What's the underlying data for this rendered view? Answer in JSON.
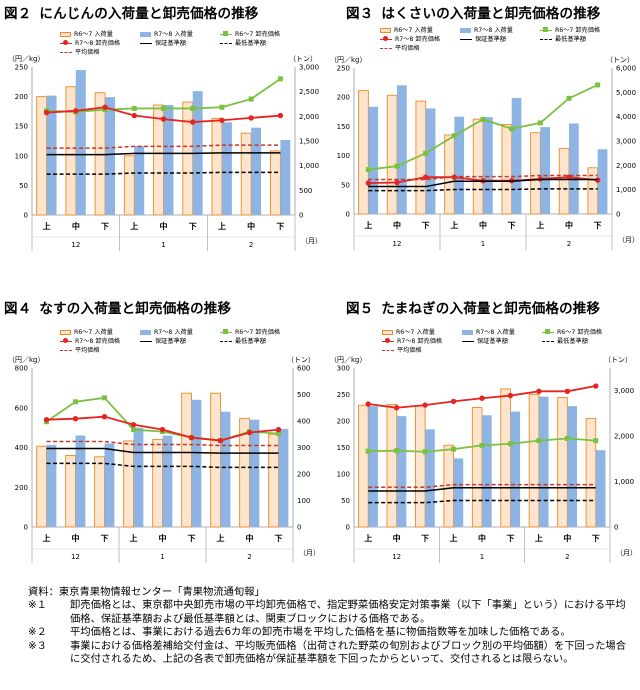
{
  "charts": [
    {
      "id": "carrot",
      "number": "図２",
      "title": "にんじんの入荷量と卸売価格の推移",
      "y_left_unit": "（円／kg）",
      "y_right_unit": "（トン）",
      "month_unit": "（月）",
      "y_left": [
        0,
        250,
        50
      ],
      "y_right": [
        0,
        3000,
        500
      ],
      "chart_data": {
        "type": "bar+line",
        "categories": [
          "上",
          "中",
          "下",
          "上",
          "中",
          "下",
          "上",
          "中",
          "下"
        ],
        "months": [
          "12",
          "1",
          "2"
        ],
        "series": [
          {
            "name": "R6～7 入荷量",
            "kind": "bar",
            "axis": "right",
            "color": "#fce4cd",
            "stroke": "#f08a24",
            "values": [
              2400,
              2600,
              2480,
              1200,
              2230,
              2290,
              1960,
              1660,
              1300
            ]
          },
          {
            "name": "R7～8 入荷量",
            "kind": "bar",
            "axis": "right",
            "color": "#8db4e2",
            "values": [
              2420,
              2940,
              2390,
              1400,
              2230,
              2510,
              1880,
              1770,
              1520
            ]
          },
          {
            "name": "R6～7 卸売価格",
            "kind": "line",
            "axis": "left",
            "color": "#7ac142",
            "marker": "square",
            "values": [
              176,
              174,
              178,
              180,
              180,
              180,
              182,
              196,
              230
            ]
          },
          {
            "name": "R7～8 卸売価格",
            "kind": "line",
            "axis": "left",
            "color": "#e52421",
            "marker": "circle",
            "values": [
              173,
              176,
              182,
              168,
              162,
              157,
              160,
              164,
              168
            ]
          },
          {
            "name": "保証基準額",
            "kind": "line",
            "axis": "left",
            "color": "#000000",
            "style": "solid",
            "values": [
              102,
              102,
              102,
              104,
              104,
              104,
              105,
              105,
              105
            ]
          },
          {
            "name": "最低基準額",
            "kind": "line",
            "axis": "left",
            "color": "#000000",
            "style": "dashed",
            "values": [
              69,
              69,
              69,
              71,
              71,
              71,
              72,
              72,
              72
            ]
          },
          {
            "name": "平均価格",
            "kind": "line",
            "axis": "left",
            "color": "#c0392b",
            "style": "dashed",
            "values": [
              113,
              113,
              113,
              116,
              116,
              116,
              118,
              118,
              118
            ]
          }
        ]
      }
    },
    {
      "id": "chinese-cabbage",
      "number": "図３",
      "title": "はくさいの入荷量と卸売価格の推移",
      "y_left_unit": "（円／kg）",
      "y_right_unit": "（トン）",
      "month_unit": "（月）",
      "y_left": [
        0,
        250,
        50
      ],
      "y_right": [
        0,
        6000,
        1000
      ],
      "chart_data": {
        "type": "bar+line",
        "categories": [
          "上",
          "中",
          "下",
          "上",
          "中",
          "下",
          "上",
          "中",
          "下"
        ],
        "months": [
          "12",
          "1",
          "2"
        ],
        "series": [
          {
            "name": "R6～7 入荷量",
            "kind": "bar",
            "axis": "right",
            "color": "#fce4cd",
            "stroke": "#f08a24",
            "values": [
              5080,
              4880,
              4640,
              3250,
              3900,
              3680,
              3340,
              2700,
              1900
            ]
          },
          {
            "name": "R7～8 入荷量",
            "kind": "bar",
            "axis": "right",
            "color": "#8db4e2",
            "values": [
              4410,
              5290,
              4340,
              4000,
              3980,
              4770,
              3570,
              3720,
              2660
            ]
          },
          {
            "name": "R6～7 卸売価格",
            "kind": "line",
            "axis": "left",
            "color": "#7ac142",
            "marker": "square",
            "values": [
              76,
              82,
              104,
              134,
              162,
              146,
              156,
              198,
              221
            ]
          },
          {
            "name": "R7～8 卸売価格",
            "kind": "line",
            "axis": "left",
            "color": "#e52421",
            "marker": "circle",
            "values": [
              53,
              54,
              63,
              63,
              57,
              57,
              60,
              63,
              58
            ]
          },
          {
            "name": "保証基準額",
            "kind": "line",
            "axis": "left",
            "color": "#000000",
            "style": "solid",
            "values": [
              47,
              47,
              47,
              56,
              56,
              56,
              59,
              59,
              59
            ]
          },
          {
            "name": "最低基準額",
            "kind": "line",
            "axis": "left",
            "color": "#000000",
            "style": "dashed",
            "values": [
              40,
              40,
              40,
              42,
              42,
              42,
              43,
              43,
              43
            ]
          },
          {
            "name": "平均価格",
            "kind": "line",
            "axis": "left",
            "color": "#c0392b",
            "style": "dashed",
            "values": [
              59,
              59,
              59,
              64,
              64,
              64,
              66,
              66,
              66
            ]
          }
        ]
      }
    },
    {
      "id": "eggplant",
      "number": "図４",
      "title": "なすの入荷量と卸売価格の推移",
      "y_left_unit": "（円／kg）",
      "y_right_unit": "（トン）",
      "month_unit": "（月）",
      "y_left": [
        0,
        800,
        200
      ],
      "y_right": [
        0,
        600,
        100
      ],
      "chart_data": {
        "type": "bar+line",
        "categories": [
          "上",
          "中",
          "下",
          "上",
          "中",
          "下",
          "上",
          "中",
          "下"
        ],
        "months": [
          "12",
          "1",
          "2"
        ],
        "series": [
          {
            "name": "R6～7 入荷量",
            "kind": "bar",
            "axis": "right",
            "color": "#fce4cd",
            "stroke": "#f08a24",
            "values": [
              305,
              270,
              265,
              325,
              330,
              505,
              505,
              410,
              350
            ]
          },
          {
            "name": "R7～8 入荷量",
            "kind": "bar",
            "axis": "right",
            "color": "#8db4e2",
            "values": [
              310,
              345,
              315,
              375,
              345,
              480,
              435,
              405,
              370
            ]
          },
          {
            "name": "R6～7 卸売価格",
            "kind": "line",
            "axis": "left",
            "color": "#7ac142",
            "marker": "square",
            "values": [
              530,
              630,
              650,
              490,
              480,
              450,
              435,
              480,
              470
            ]
          },
          {
            "name": "R7～8 卸売価格",
            "kind": "line",
            "axis": "left",
            "color": "#e52421",
            "marker": "circle",
            "values": [
              540,
              545,
              555,
              515,
              490,
              450,
              435,
              475,
              490
            ]
          },
          {
            "name": "保証基準額",
            "kind": "line",
            "axis": "left",
            "color": "#000000",
            "style": "solid",
            "values": [
              395,
              395,
              395,
              375,
              375,
              375,
              372,
              372,
              372
            ]
          },
          {
            "name": "最低基準額",
            "kind": "line",
            "axis": "left",
            "color": "#000000",
            "style": "dashed",
            "values": [
              320,
              320,
              320,
              305,
              305,
              305,
              300,
              300,
              300
            ]
          },
          {
            "name": "平均価格",
            "kind": "line",
            "axis": "left",
            "color": "#c0392b",
            "style": "dashed",
            "values": [
              430,
              430,
              430,
              415,
              415,
              415,
              410,
              410,
              410
            ]
          }
        ]
      }
    },
    {
      "id": "onion",
      "number": "図５",
      "title": "たまねぎの入荷量と卸売価格の推移",
      "y_left_unit": "（円／kg）",
      "y_right_unit": "（トン）",
      "month_unit": "（月）",
      "y_left": [
        0,
        300,
        50
      ],
      "y_right": [
        0,
        3500,
        1000
      ],
      "chart_data": {
        "type": "bar+line",
        "categories": [
          "上",
          "中",
          "下",
          "上",
          "中",
          "下",
          "上",
          "中",
          "下"
        ],
        "months": [
          "12",
          "1",
          "2"
        ],
        "series": [
          {
            "name": "R6～7 入荷量",
            "kind": "bar",
            "axis": "right",
            "color": "#fce4cd",
            "stroke": "#f08a24",
            "values": [
              2680,
              2700,
              2670,
              1800,
              2630,
              3040,
              2920,
              2850,
              2390
            ]
          },
          {
            "name": "R7～8 入荷量",
            "kind": "bar",
            "axis": "right",
            "color": "#8db4e2",
            "values": [
              2660,
              2440,
              2150,
              1510,
              2460,
              2540,
              2870,
              2660,
              1690
            ]
          },
          {
            "name": "R6～7 卸売価格",
            "kind": "line",
            "axis": "left",
            "color": "#7ac142",
            "marker": "square",
            "values": [
              143,
              144,
              142,
              147,
              154,
              157,
              163,
              167,
              163
            ]
          },
          {
            "name": "R7～8 卸売価格",
            "kind": "line",
            "axis": "left",
            "color": "#e52421",
            "marker": "circle",
            "values": [
              232,
              225,
              230,
              237,
              243,
              248,
              256,
              256,
              266
            ]
          },
          {
            "name": "保証基準額",
            "kind": "line",
            "axis": "left",
            "color": "#000000",
            "style": "solid",
            "values": [
              68,
              68,
              68,
              74,
              74,
              74,
              74,
              74,
              74
            ]
          },
          {
            "name": "最低基準額",
            "kind": "line",
            "axis": "left",
            "color": "#000000",
            "style": "dashed",
            "values": [
              46,
              46,
              46,
              50,
              50,
              50,
              50,
              50,
              50
            ]
          },
          {
            "name": "平均価格",
            "kind": "line",
            "axis": "left",
            "color": "#c0392b",
            "style": "dashed",
            "values": [
              75,
              75,
              75,
              80,
              80,
              80,
              80,
              80,
              80
            ]
          }
        ]
      }
    }
  ],
  "notes": {
    "source": "資料：東京青果物情報センター「青果物流通旬報」",
    "items": [
      {
        "mark": "※１",
        "text": "卸売価格とは、東京都中央卸売市場の平均卸売価格で、指定野菜価格安定対策事業（以下「事業」という）における平均価格、保証基準額および最低基準額とは、関東ブロックにおける価格である。"
      },
      {
        "mark": "※２",
        "text": "平均価格とは、事業における過去6カ年の卸売市場を平均した価格を基に物価指数等を加味した価格である。"
      },
      {
        "mark": "※３",
        "text": "事業における価格差補給交付金は、平均販売価格（出荷された野菜の旬別およびブロック別の平均価額）を下回った場合に交付されるため、上記の各表で卸売価格が保証基準額を下回ったからといって、交付されるとは限らない。"
      }
    ]
  }
}
